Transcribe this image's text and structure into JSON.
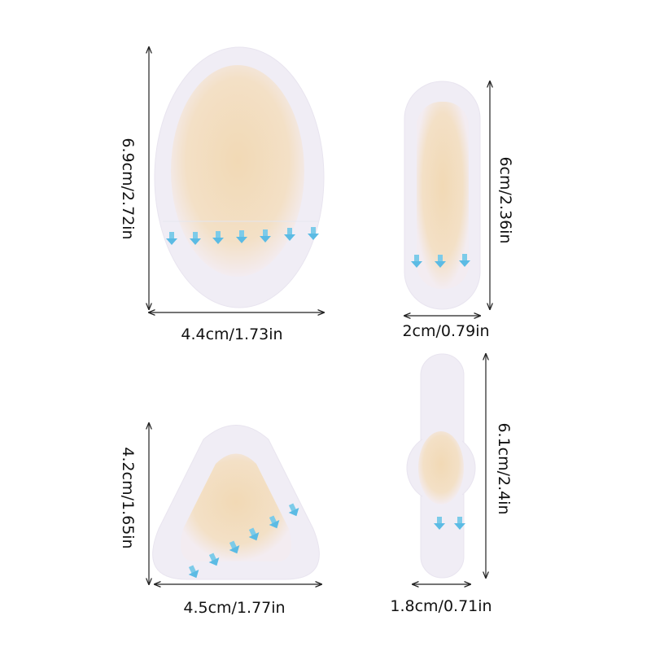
{
  "colors": {
    "patch_edge": "#f1eef6",
    "patch_center": "#f2dcbc",
    "arrow": "#6cc4e8",
    "dimension_line": "#222222"
  },
  "patches": [
    {
      "shape": "oval",
      "height_label": "6.9cm/2.72in",
      "width_label": "4.4cm/1.73in"
    },
    {
      "shape": "rounded-strip",
      "height_label": "6cm/2.36in",
      "width_label": "2cm/0.79in"
    },
    {
      "shape": "rounded-triangle",
      "height_label": "4.2cm/1.65in",
      "width_label": "4.5cm/1.77in"
    },
    {
      "shape": "strip-with-round-pad",
      "height_label": "6.1cm/2.4in",
      "width_label": "1.8cm/0.71in"
    }
  ]
}
